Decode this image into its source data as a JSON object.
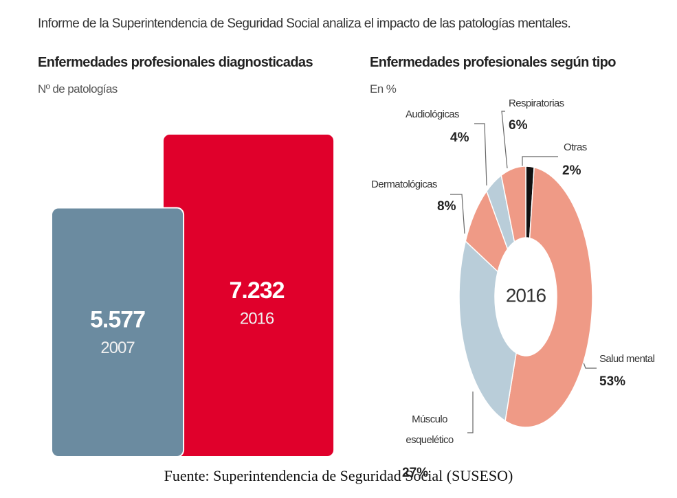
{
  "header": {
    "title": "Informe de la Superintendencia de Seguridad Social analiza el impacto de las patologías mentales."
  },
  "chart_data": [
    {
      "type": "bar",
      "title": "Enfermedades profesionales diagnosticadas",
      "subtitle": "Nº de patologías",
      "categories": [
        "2007",
        "2016"
      ],
      "values": [
        5577,
        7232
      ],
      "value_labels": [
        "5.577",
        "7.232"
      ],
      "colors": [
        "#6b8ba0",
        "#e0002b"
      ]
    },
    {
      "type": "pie",
      "title": "Enfermedades profesionales según tipo",
      "subtitle": "En %",
      "center_label": "2016",
      "categories": [
        "Otras",
        "Salud mental",
        "Músculo esquelético",
        "Dermatológicas",
        "Audiológicas",
        "Respiratorias"
      ],
      "values": [
        2,
        53,
        27,
        8,
        4,
        6
      ],
      "value_labels": [
        "2%",
        "53%",
        "27%",
        "8%",
        "4%",
        "6%"
      ],
      "colors": [
        "#111111",
        "#ef9a86",
        "#b9cdd9",
        "#ef9a86",
        "#b9cdd9",
        "#ef9a86"
      ]
    }
  ],
  "footer": {
    "source": "Fuente: Superintendencia de Seguridad Social (SUSESO)"
  }
}
